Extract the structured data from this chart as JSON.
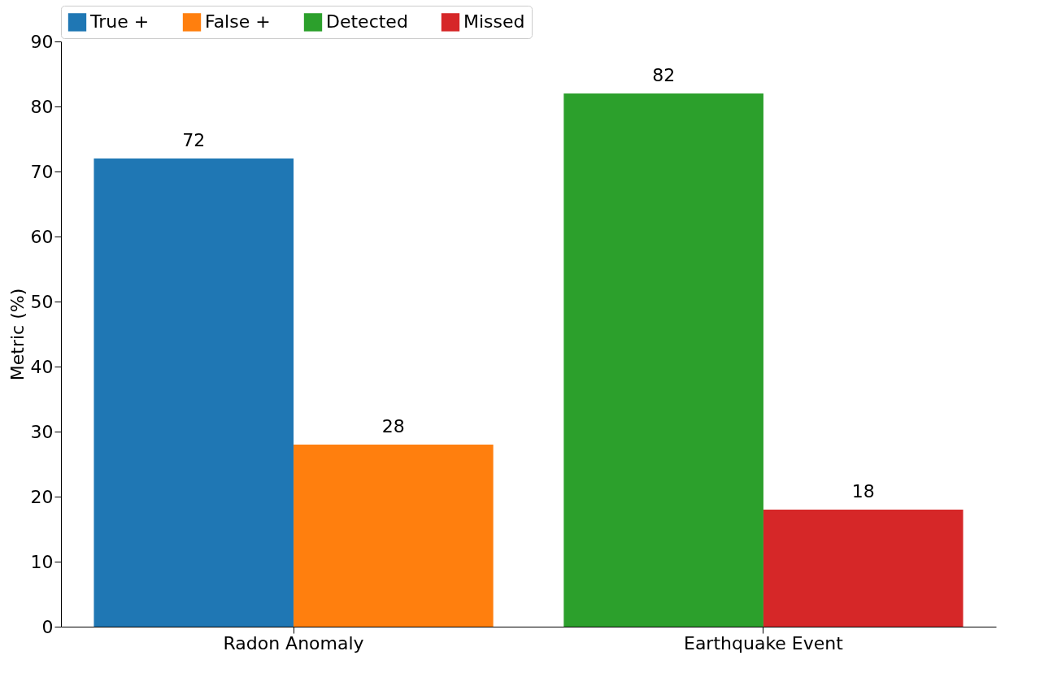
{
  "chart_data": {
    "type": "bar",
    "ylabel": "Metric (%)",
    "categories": [
      "Radon Anomaly",
      "Earthquake Event"
    ],
    "series": [
      {
        "name": "True +",
        "color": "#1f77b4",
        "values": [
          72,
          null
        ]
      },
      {
        "name": "False +",
        "color": "#ff7f0e",
        "values": [
          28,
          null
        ]
      },
      {
        "name": "Detected",
        "color": "#2ca02c",
        "values": [
          null,
          82
        ]
      },
      {
        "name": "Missed",
        "color": "#d62728",
        "values": [
          null,
          18
        ]
      }
    ],
    "ylim": [
      0,
      90
    ],
    "yticks": [
      0,
      10,
      20,
      30,
      40,
      50,
      60,
      70,
      80,
      90
    ],
    "grid": false,
    "legend": "top",
    "data_labels": true
  }
}
